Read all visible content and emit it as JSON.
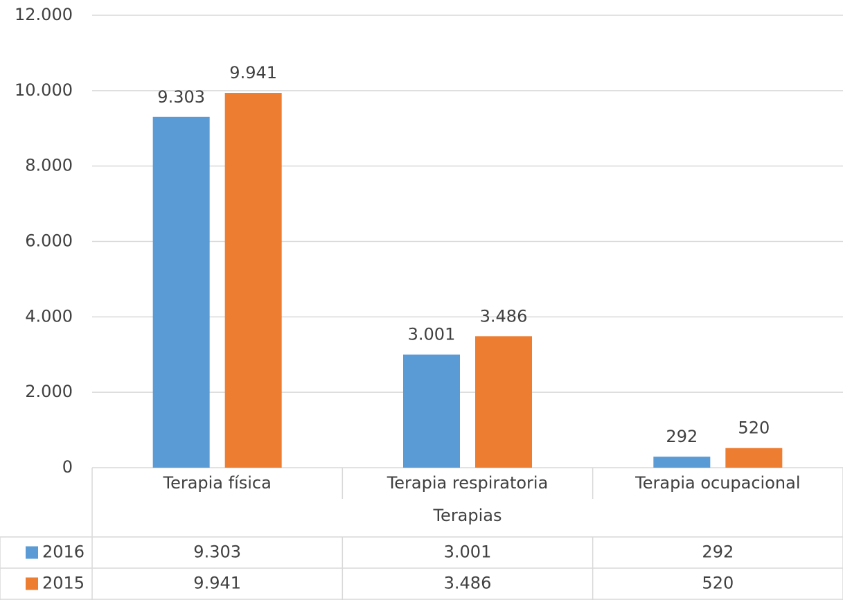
{
  "chart_data": {
    "type": "bar",
    "x_label": "Terapias",
    "categories": [
      "Terapia física",
      "Terapia respiratoria",
      "Terapia ocupacional"
    ],
    "series": [
      {
        "name": "2016",
        "color": "#5b9bd5",
        "values": [
          9303,
          3001,
          292
        ],
        "value_labels": [
          "9.303",
          "3.001",
          "292"
        ]
      },
      {
        "name": "2015",
        "color": "#ed7d31",
        "values": [
          9941,
          3486,
          520
        ],
        "value_labels": [
          "9.941",
          "3.486",
          "520"
        ]
      }
    ],
    "ylim": [
      0,
      12000
    ],
    "yticks": [
      {
        "value": 0,
        "label": "0"
      },
      {
        "value": 2000,
        "label": "2.000"
      },
      {
        "value": 4000,
        "label": "4.000"
      },
      {
        "value": 6000,
        "label": "6.000"
      },
      {
        "value": 8000,
        "label": "8.000"
      },
      {
        "value": 10000,
        "label": "10.000"
      },
      {
        "value": 12000,
        "label": "12.000"
      }
    ],
    "grid": true,
    "data_table": true
  }
}
